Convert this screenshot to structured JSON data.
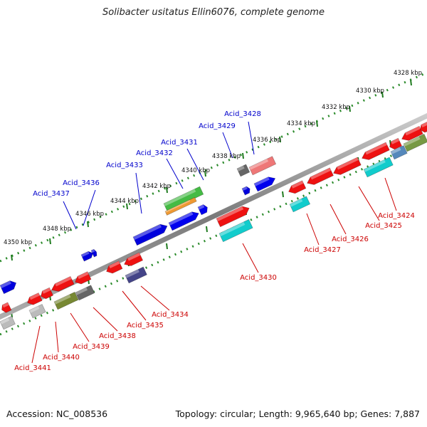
{
  "title": "Solibacter usitatus Ellin6076, complete genome",
  "footer": {
    "accession": "Accession: NC_008536",
    "summary": "Topology: circular; Length: 9,965,640 bp; Genes: 7,887"
  },
  "colors": {
    "backbone": "#8a8a8a",
    "tick_track": "#2a8a2a",
    "top_label": "#0000cc",
    "bottom_label": "#cc0000"
  },
  "kbp_ticks": [
    "4328 kbp",
    "4330 kbp",
    "4332 kbp",
    "4334 kbp",
    "4336 kbp",
    "4338 kbp",
    "4340 kbp",
    "4342 kbp",
    "4344 kbp",
    "4346 kbp",
    "4348 kbp",
    "4350 kbp"
  ],
  "top_genes": [
    "Acid_3428",
    "Acid_3429",
    "Acid_3431",
    "Acid_3432",
    "Acid_3433",
    "Acid_3436",
    "Acid_3437"
  ],
  "bottom_genes": [
    "Acid_3424",
    "Acid_3425",
    "Acid_3426",
    "Acid_3427",
    "Acid_3430",
    "Acid_3434",
    "Acid_3435",
    "Acid_3438",
    "Acid_3439",
    "Acid_3440",
    "Acid_3441"
  ]
}
